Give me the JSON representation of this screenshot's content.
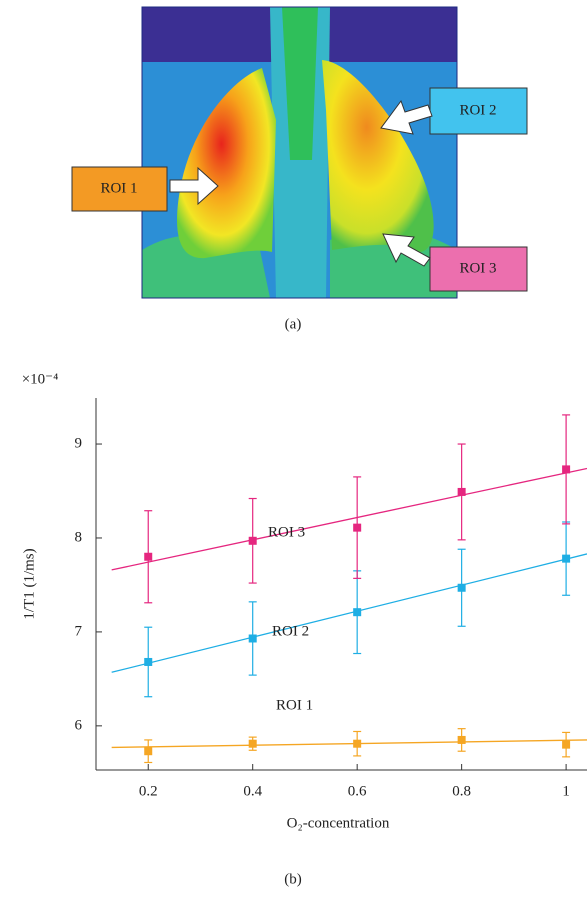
{
  "panel_a": {
    "labels": [
      "ROI 1",
      "ROI 2",
      "ROI 3"
    ],
    "caption": "(a)"
  },
  "chart_data": {
    "type": "scatter",
    "multiplier": "×10⁻⁴",
    "xlabel": "O₂-concentration",
    "ylabel": "1/T1 (1/ms)",
    "caption": "(b)",
    "x": [
      0.2,
      0.4,
      0.6,
      0.8,
      1
    ],
    "xlim": [
      0.1,
      1.04
    ],
    "ylim": [
      5.53,
      9.49
    ],
    "xticks": [
      0.2,
      0.4,
      0.6,
      0.8,
      1
    ],
    "yticks": [
      6,
      7,
      8,
      9
    ],
    "grid": false,
    "series": [
      {
        "name": "ROI 1",
        "color": "#f5a623",
        "values": [
          5.73,
          5.81,
          5.81,
          5.85,
          5.8
        ],
        "errors": [
          0.12,
          0.07,
          0.13,
          0.12,
          0.13
        ],
        "fit_x": [
          0.13,
          1.04
        ],
        "fit_y": [
          5.77,
          5.85
        ]
      },
      {
        "name": "ROI 2",
        "color": "#1eaee4",
        "values": [
          6.68,
          6.93,
          7.21,
          7.47,
          7.78
        ],
        "errors": [
          0.37,
          0.39,
          0.44,
          0.41,
          0.39
        ],
        "fit_x": [
          0.13,
          1.04
        ],
        "fit_y": [
          6.57,
          7.83
        ]
      },
      {
        "name": "ROI 3",
        "color": "#e5267f",
        "values": [
          7.8,
          7.97,
          8.11,
          8.49,
          8.73
        ],
        "errors": [
          0.49,
          0.45,
          0.54,
          0.51,
          0.58
        ],
        "fit_x": [
          0.13,
          1.04
        ],
        "fit_y": [
          7.66,
          8.74
        ]
      }
    ]
  }
}
